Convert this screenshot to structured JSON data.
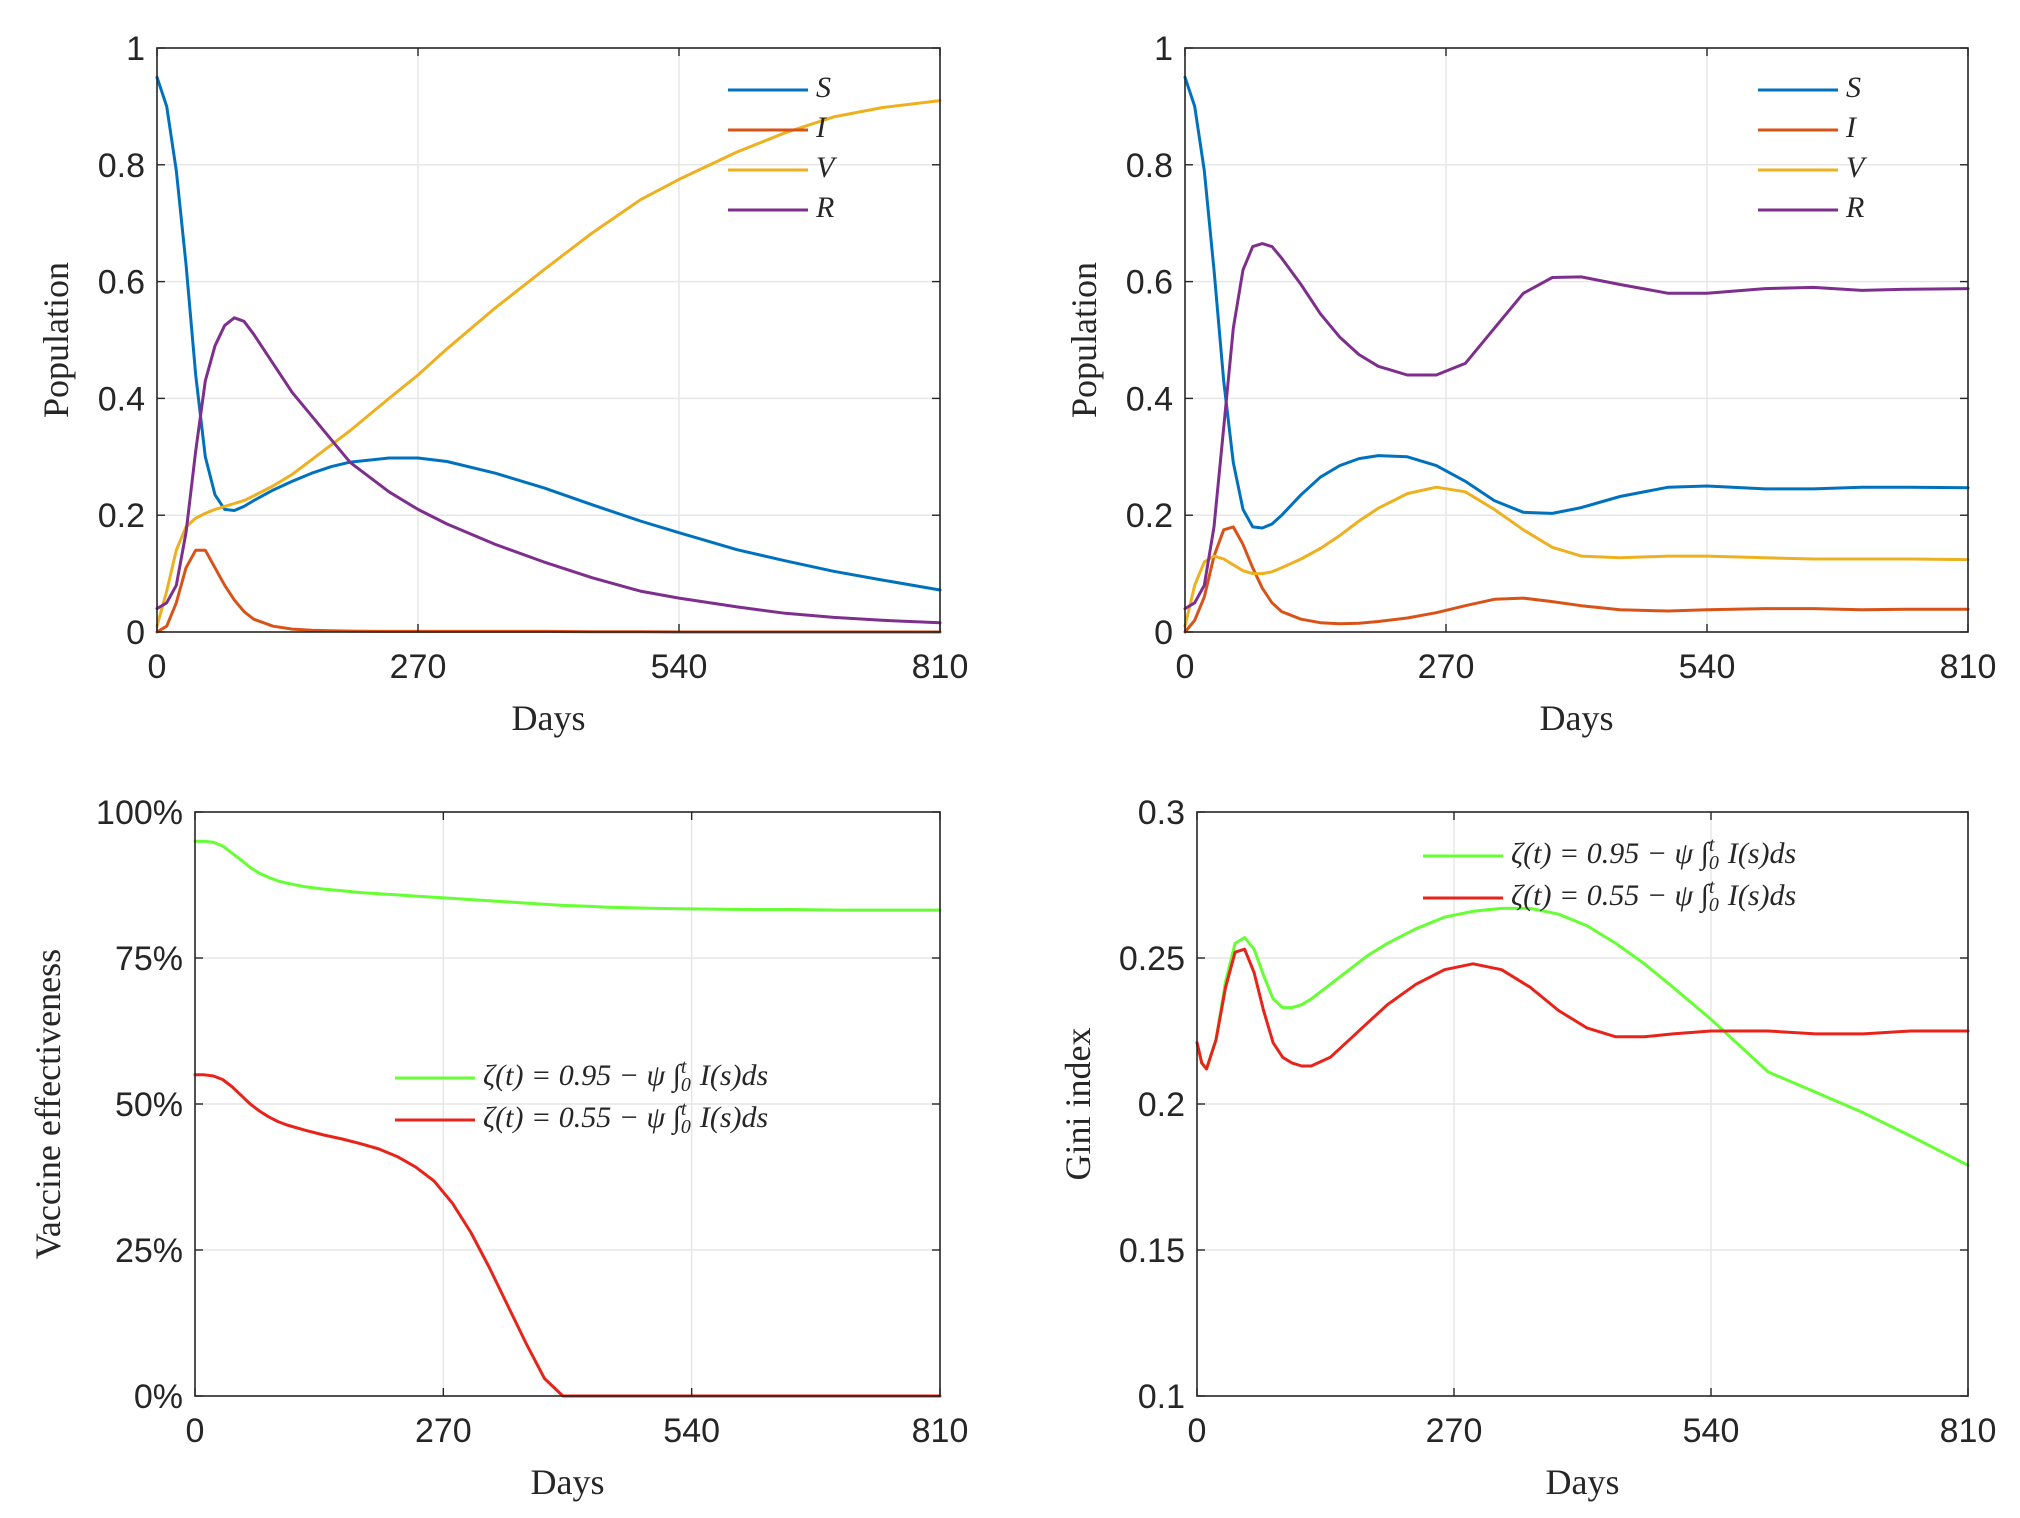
{
  "chart_data": [
    {
      "type": "line",
      "xlabel": "Days",
      "ylabel": "Population",
      "xlim": [
        0,
        810
      ],
      "ylim": [
        0,
        1
      ],
      "xticks": [
        "0",
        "270",
        "540",
        "810"
      ],
      "yticks": [
        "0",
        "0.2",
        "0.4",
        "0.6",
        "0.8",
        "1"
      ],
      "ytick_values": [
        0,
        0.2,
        0.4,
        0.6,
        0.8,
        1
      ],
      "grid": true,
      "legend_position": "top-right",
      "x": [
        0,
        10,
        20,
        30,
        40,
        50,
        60,
        70,
        80,
        90,
        100,
        120,
        140,
        160,
        180,
        200,
        240,
        270,
        300,
        350,
        400,
        450,
        500,
        540,
        600,
        650,
        700,
        750,
        810
      ],
      "series": [
        {
          "name": "S",
          "color": "#0072BD",
          "values": [
            0.95,
            0.9,
            0.79,
            0.63,
            0.44,
            0.3,
            0.235,
            0.21,
            0.208,
            0.215,
            0.225,
            0.243,
            0.258,
            0.272,
            0.283,
            0.291,
            0.298,
            0.298,
            0.292,
            0.272,
            0.247,
            0.218,
            0.19,
            0.17,
            0.141,
            0.122,
            0.104,
            0.089,
            0.072
          ]
        },
        {
          "name": "I",
          "color": "#D95319",
          "values": [
            0.0,
            0.01,
            0.05,
            0.11,
            0.14,
            0.14,
            0.11,
            0.08,
            0.055,
            0.035,
            0.022,
            0.01,
            0.005,
            0.003,
            0.002,
            0.0015,
            0.001,
            0.001,
            0.001,
            0.001,
            0.001,
            0.0005,
            0.0005,
            0.0,
            0.0,
            0.0,
            0.0,
            0.0,
            0.0
          ]
        },
        {
          "name": "V",
          "color": "#EDB120",
          "values": [
            0.01,
            0.07,
            0.14,
            0.18,
            0.195,
            0.203,
            0.21,
            0.215,
            0.22,
            0.225,
            0.233,
            0.25,
            0.27,
            0.295,
            0.32,
            0.345,
            0.4,
            0.44,
            0.485,
            0.555,
            0.62,
            0.683,
            0.74,
            0.775,
            0.822,
            0.855,
            0.882,
            0.898,
            0.91
          ]
        },
        {
          "name": "R",
          "color": "#7E2F8E",
          "values": [
            0.04,
            0.05,
            0.08,
            0.17,
            0.31,
            0.43,
            0.49,
            0.525,
            0.538,
            0.532,
            0.51,
            0.46,
            0.41,
            0.37,
            0.33,
            0.29,
            0.24,
            0.21,
            0.185,
            0.15,
            0.12,
            0.093,
            0.07,
            0.058,
            0.043,
            0.032,
            0.025,
            0.02,
            0.016
          ]
        }
      ]
    },
    {
      "type": "line",
      "xlabel": "Days",
      "ylabel": "Population",
      "xlim": [
        0,
        810
      ],
      "ylim": [
        0,
        1
      ],
      "xticks": [
        "0",
        "270",
        "540",
        "810"
      ],
      "yticks": [
        "0",
        "0.2",
        "0.4",
        "0.6",
        "0.8",
        "1"
      ],
      "ytick_values": [
        0,
        0.2,
        0.4,
        0.6,
        0.8,
        1
      ],
      "grid": true,
      "legend_position": "top-right",
      "x": [
        0,
        10,
        20,
        30,
        40,
        50,
        60,
        70,
        80,
        90,
        100,
        120,
        140,
        160,
        180,
        200,
        230,
        260,
        290,
        320,
        350,
        380,
        410,
        450,
        500,
        540,
        600,
        650,
        700,
        750,
        810
      ],
      "series": [
        {
          "name": "S",
          "color": "#0072BD",
          "values": [
            0.95,
            0.9,
            0.79,
            0.62,
            0.43,
            0.29,
            0.21,
            0.18,
            0.178,
            0.185,
            0.2,
            0.235,
            0.265,
            0.285,
            0.297,
            0.302,
            0.3,
            0.285,
            0.258,
            0.225,
            0.205,
            0.203,
            0.213,
            0.232,
            0.248,
            0.25,
            0.245,
            0.245,
            0.248,
            0.248,
            0.247
          ]
        },
        {
          "name": "I",
          "color": "#D95319",
          "values": [
            0.0,
            0.02,
            0.06,
            0.13,
            0.175,
            0.18,
            0.15,
            0.11,
            0.075,
            0.05,
            0.035,
            0.022,
            0.016,
            0.014,
            0.015,
            0.018,
            0.024,
            0.033,
            0.045,
            0.056,
            0.058,
            0.052,
            0.045,
            0.038,
            0.036,
            0.038,
            0.04,
            0.04,
            0.038,
            0.039,
            0.039
          ]
        },
        {
          "name": "V",
          "color": "#EDB120",
          "values": [
            0.01,
            0.08,
            0.12,
            0.13,
            0.125,
            0.115,
            0.105,
            0.1,
            0.1,
            0.103,
            0.11,
            0.125,
            0.143,
            0.165,
            0.19,
            0.212,
            0.237,
            0.248,
            0.24,
            0.21,
            0.175,
            0.145,
            0.13,
            0.127,
            0.13,
            0.13,
            0.127,
            0.125,
            0.125,
            0.125,
            0.124
          ]
        },
        {
          "name": "R",
          "color": "#7E2F8E",
          "values": [
            0.04,
            0.05,
            0.08,
            0.18,
            0.35,
            0.52,
            0.62,
            0.66,
            0.665,
            0.66,
            0.64,
            0.595,
            0.545,
            0.505,
            0.475,
            0.455,
            0.44,
            0.44,
            0.46,
            0.52,
            0.58,
            0.607,
            0.608,
            0.595,
            0.58,
            0.58,
            0.588,
            0.59,
            0.585,
            0.587,
            0.588
          ]
        }
      ]
    },
    {
      "type": "line",
      "xlabel": "Days",
      "ylabel": "Vaccine effectiveness",
      "xlim": [
        0,
        810
      ],
      "ylim": [
        0,
        1
      ],
      "xticks": [
        "0",
        "270",
        "540",
        "810"
      ],
      "yticks": [
        "0%",
        "25%",
        "50%",
        "75%",
        "100%"
      ],
      "ytick_values": [
        0,
        0.25,
        0.5,
        0.75,
        1
      ],
      "grid": true,
      "legend_position": "right",
      "x": [
        0,
        10,
        20,
        30,
        40,
        50,
        60,
        70,
        80,
        90,
        100,
        120,
        140,
        160,
        180,
        200,
        220,
        240,
        260,
        280,
        300,
        320,
        340,
        360,
        380,
        400,
        420,
        450,
        500,
        540,
        600,
        650,
        700,
        750,
        810
      ],
      "series": [
        {
          "name": "ζ(t) = 0.95 − ψ ∫₀ᵗ I(s)ds",
          "color": "#66FF33",
          "values": [
            0.95,
            0.95,
            0.948,
            0.942,
            0.93,
            0.918,
            0.905,
            0.895,
            0.888,
            0.882,
            0.878,
            0.872,
            0.868,
            0.865,
            0.862,
            0.86,
            0.858,
            0.856,
            0.854,
            0.852,
            0.85,
            0.848,
            0.846,
            0.844,
            0.842,
            0.84,
            0.839,
            0.837,
            0.835,
            0.834,
            0.833,
            0.833,
            0.832,
            0.832,
            0.832
          ]
        },
        {
          "name": "ζ(t) = 0.55 − ψ ∫₀ᵗ I(s)ds",
          "color": "#E8231A",
          "values": [
            0.55,
            0.55,
            0.548,
            0.542,
            0.53,
            0.515,
            0.5,
            0.488,
            0.478,
            0.47,
            0.464,
            0.455,
            0.447,
            0.44,
            0.432,
            0.423,
            0.41,
            0.392,
            0.368,
            0.33,
            0.28,
            0.22,
            0.155,
            0.09,
            0.03,
            0.0,
            0.0,
            0.0,
            0.0,
            0.0,
            0.0,
            0.0,
            0.0,
            0.0,
            0.0
          ]
        }
      ]
    },
    {
      "type": "line",
      "xlabel": "Days",
      "ylabel": "Gini index",
      "xlim": [
        0,
        810
      ],
      "ylim": [
        0.1,
        0.3
      ],
      "xticks": [
        "0",
        "270",
        "540",
        "810"
      ],
      "yticks": [
        "0.1",
        "0.15",
        "0.2",
        "0.25",
        "0.3"
      ],
      "ytick_values": [
        0.1,
        0.15,
        0.2,
        0.25,
        0.3
      ],
      "grid": true,
      "legend_position": "top-right",
      "x": [
        0,
        5,
        10,
        20,
        30,
        40,
        50,
        60,
        70,
        80,
        90,
        100,
        110,
        120,
        140,
        160,
        180,
        200,
        230,
        260,
        290,
        320,
        350,
        380,
        410,
        440,
        470,
        500,
        540,
        560,
        580,
        600,
        650,
        700,
        750,
        810
      ],
      "series": [
        {
          "name": "ζ(t) = 0.95 − ψ ∫₀ᵗ I(s)ds",
          "color": "#66FF33",
          "values": [
            0.221,
            0.214,
            0.212,
            0.222,
            0.242,
            0.255,
            0.257,
            0.253,
            0.244,
            0.236,
            0.233,
            0.233,
            0.234,
            0.236,
            0.241,
            0.246,
            0.251,
            0.255,
            0.26,
            0.264,
            0.266,
            0.267,
            0.267,
            0.265,
            0.261,
            0.255,
            0.248,
            0.24,
            0.229,
            0.223,
            0.217,
            0.211,
            0.204,
            0.197,
            0.189,
            0.179
          ]
        },
        {
          "name": "ζ(t) = 0.55 − ψ ∫₀ᵗ I(s)ds",
          "color": "#E8231A",
          "values": [
            0.221,
            0.214,
            0.212,
            0.222,
            0.24,
            0.252,
            0.253,
            0.245,
            0.232,
            0.221,
            0.216,
            0.214,
            0.213,
            0.213,
            0.216,
            0.222,
            0.228,
            0.234,
            0.241,
            0.246,
            0.248,
            0.246,
            0.24,
            0.232,
            0.226,
            0.223,
            0.223,
            0.224,
            0.225,
            0.225,
            0.225,
            0.225,
            0.224,
            0.224,
            0.225,
            0.225
          ]
        }
      ]
    }
  ]
}
